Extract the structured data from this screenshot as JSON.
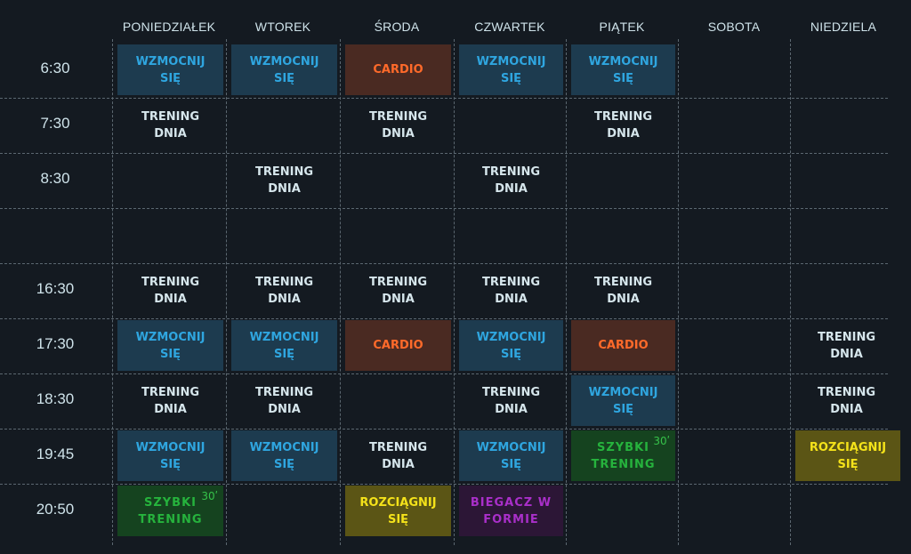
{
  "days": [
    "PONIEDZIAŁEK",
    "WTOREK",
    "ŚRODA",
    "CZWARTEK",
    "PIĄTEK",
    "SOBOTA",
    "NIEDZIELA"
  ],
  "times": [
    "6:30",
    "7:30",
    "8:30",
    "",
    "16:30",
    "17:30",
    "18:30",
    "19:45",
    "20:50"
  ],
  "classes": [
    {
      "day": 0,
      "row": 0,
      "type": "wzmocnij",
      "label": "WZMOCNIJ SIĘ"
    },
    {
      "day": 1,
      "row": 0,
      "type": "wzmocnij",
      "label": "WZMOCNIJ SIĘ"
    },
    {
      "day": 2,
      "row": 0,
      "type": "cardio",
      "label": "CARDIO"
    },
    {
      "day": 3,
      "row": 0,
      "type": "wzmocnij",
      "label": "WZMOCNIJ SIĘ"
    },
    {
      "day": 4,
      "row": 0,
      "type": "wzmocnij",
      "label": "WZMOCNIJ SIĘ"
    },
    {
      "day": 0,
      "row": 1,
      "type": "trening",
      "label": "TRENING DNIA"
    },
    {
      "day": 2,
      "row": 1,
      "type": "trening",
      "label": "TRENING DNIA"
    },
    {
      "day": 4,
      "row": 1,
      "type": "trening",
      "label": "TRENING DNIA"
    },
    {
      "day": 1,
      "row": 2,
      "type": "trening",
      "label": "TRENING DNIA"
    },
    {
      "day": 3,
      "row": 2,
      "type": "trening",
      "label": "TRENING DNIA"
    },
    {
      "day": 0,
      "row": 4,
      "type": "trening",
      "label": "TRENING DNIA"
    },
    {
      "day": 1,
      "row": 4,
      "type": "trening",
      "label": "TRENING DNIA"
    },
    {
      "day": 2,
      "row": 4,
      "type": "trening",
      "label": "TRENING DNIA"
    },
    {
      "day": 3,
      "row": 4,
      "type": "trening",
      "label": "TRENING DNIA"
    },
    {
      "day": 4,
      "row": 4,
      "type": "trening",
      "label": "TRENING DNIA"
    },
    {
      "day": 0,
      "row": 5,
      "type": "wzmocnij",
      "label": "WZMOCNIJ SIĘ"
    },
    {
      "day": 1,
      "row": 5,
      "type": "wzmocnij",
      "label": "WZMOCNIJ SIĘ"
    },
    {
      "day": 2,
      "row": 5,
      "type": "cardio",
      "label": "CARDIO"
    },
    {
      "day": 3,
      "row": 5,
      "type": "wzmocnij",
      "label": "WZMOCNIJ SIĘ"
    },
    {
      "day": 4,
      "row": 5,
      "type": "cardio",
      "label": "CARDIO"
    },
    {
      "day": 6,
      "row": 5,
      "type": "trening",
      "label": "TRENING DNIA"
    },
    {
      "day": 0,
      "row": 6,
      "type": "trening",
      "label": "TRENING DNIA"
    },
    {
      "day": 1,
      "row": 6,
      "type": "trening",
      "label": "TRENING DNIA"
    },
    {
      "day": 3,
      "row": 6,
      "type": "trening",
      "label": "TRENING DNIA"
    },
    {
      "day": 4,
      "row": 6,
      "type": "wzmocnij",
      "label": "WZMOCNIJ SIĘ"
    },
    {
      "day": 6,
      "row": 6,
      "type": "trening",
      "label": "TRENING DNIA"
    },
    {
      "day": 0,
      "row": 7,
      "type": "wzmocnij",
      "label": "WZMOCNIJ SIĘ"
    },
    {
      "day": 1,
      "row": 7,
      "type": "wzmocnij",
      "label": "WZMOCNIJ SIĘ"
    },
    {
      "day": 2,
      "row": 7,
      "type": "trening",
      "label": "TRENING DNIA"
    },
    {
      "day": 3,
      "row": 7,
      "type": "wzmocnij",
      "label": "WZMOCNIJ SIĘ"
    },
    {
      "day": 4,
      "row": 7,
      "type": "szybki",
      "label": "SZYBKI TRENING",
      "badge": "30ʹ"
    },
    {
      "day": 6,
      "row": 7,
      "type": "rozciagnij",
      "label": "ROZCIĄGNIJ SIĘ"
    },
    {
      "day": 0,
      "row": 8,
      "type": "szybki",
      "label": "SZYBKI TRENING",
      "badge": "30ʹ"
    },
    {
      "day": 2,
      "row": 8,
      "type": "rozciagnij",
      "label": "ROZCIĄGNIJ SIĘ"
    },
    {
      "day": 3,
      "row": 8,
      "type": "biegacz",
      "label": "BIEGACZ W FORMIE"
    }
  ],
  "colors": {
    "background": "#141a21",
    "wzmocnij": "#2fa6e0",
    "cardio": "#ff6a2a",
    "szybki": "#26b33d",
    "rozciagnij": "#f4e21a",
    "biegacz": "#a92fc9"
  }
}
